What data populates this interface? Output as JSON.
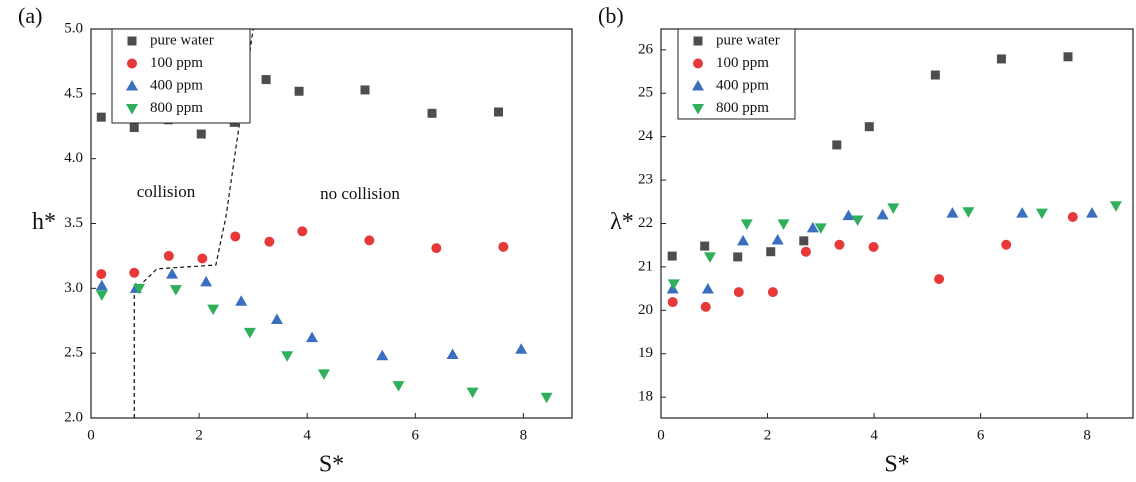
{
  "chart_data": [
    {
      "type": "scatter",
      "label": "(a)",
      "xlabel": "S*",
      "ylabel": "h*",
      "xlim": [
        0,
        8.9
      ],
      "ylim": [
        2,
        5
      ],
      "xticks": [
        0,
        2,
        4,
        6,
        8
      ],
      "yticks": [
        {
          "value": 2,
          "label": "2.0"
        },
        {
          "value": 2.5,
          "label": "2.5"
        },
        {
          "value": 3,
          "label": "3.0"
        },
        {
          "value": 3.5,
          "label": "3.5"
        },
        {
          "value": 4,
          "label": "4.0"
        },
        {
          "value": 4.5,
          "label": "4.5"
        },
        {
          "value": 5,
          "label": "5.0"
        }
      ],
      "annotations": [
        "collision",
        "no collision"
      ],
      "boundary": {
        "x": [
          0.8,
          0.8,
          1.22,
          2.31,
          2.5,
          3.0
        ],
        "y": [
          2.0,
          2.98,
          3.15,
          3.18,
          3.56,
          5.0
        ]
      },
      "series": [
        {
          "name": "pure water",
          "color": "#4d4d4d",
          "marker": "square",
          "x": [
            0.19,
            0.8,
            1.43,
            2.04,
            2.65,
            3.24,
            3.85,
            5.07,
            6.31,
            7.54
          ],
          "values": [
            4.32,
            4.24,
            4.3,
            4.19,
            4.28,
            4.61,
            4.52,
            4.53,
            4.35,
            4.36
          ]
        },
        {
          "name": "100 ppm",
          "color": "#e8393a",
          "marker": "circle",
          "x": [
            0.19,
            0.8,
            1.44,
            2.06,
            2.67,
            3.3,
            3.91,
            5.15,
            6.39,
            7.63
          ],
          "values": [
            3.11,
            3.12,
            3.25,
            3.23,
            3.4,
            3.36,
            3.44,
            3.37,
            3.31,
            3.32
          ]
        },
        {
          "name": "400 ppm",
          "color": "#3a6fc0",
          "marker": "triangle-up",
          "x": [
            0.2,
            0.83,
            1.5,
            2.13,
            2.78,
            3.44,
            4.09,
            5.39,
            6.69,
            7.96
          ],
          "values": [
            3.02,
            3.0,
            3.11,
            3.05,
            2.9,
            2.76,
            2.62,
            2.48,
            2.49,
            2.53
          ]
        },
        {
          "name": "800 ppm",
          "color": "#2eb05a",
          "marker": "triangle-down",
          "x": [
            0.2,
            0.89,
            1.57,
            2.26,
            2.94,
            3.63,
            4.31,
            5.69,
            7.06,
            8.43
          ],
          "values": [
            2.95,
            3.0,
            2.99,
            2.84,
            2.66,
            2.48,
            2.34,
            2.25,
            2.2,
            2.16
          ]
        }
      ]
    },
    {
      "type": "scatter",
      "label": "(b)",
      "xlabel": "S*",
      "ylabel": "λ*",
      "xlim": [
        0,
        8.86
      ],
      "ylim": [
        17.52,
        26.48
      ],
      "xticks": [
        0,
        2,
        4,
        6,
        8
      ],
      "yticks": [
        18,
        19,
        20,
        21,
        22,
        23,
        24,
        25,
        26
      ],
      "series": [
        {
          "name": "pure water",
          "color": "#4d4d4d",
          "marker": "square",
          "x": [
            0.21,
            0.82,
            1.44,
            2.06,
            2.68,
            3.3,
            3.91,
            5.15,
            6.39,
            7.64
          ],
          "values": [
            21.25,
            21.48,
            21.23,
            21.35,
            21.6,
            23.81,
            24.23,
            25.42,
            25.79,
            25.84
          ]
        },
        {
          "name": "100 ppm",
          "color": "#e8393a",
          "marker": "circle",
          "x": [
            0.22,
            0.84,
            1.46,
            2.1,
            2.72,
            3.35,
            3.99,
            5.22,
            6.48,
            7.73
          ],
          "values": [
            20.19,
            20.08,
            20.42,
            20.42,
            21.35,
            21.51,
            21.46,
            20.72,
            21.51,
            22.15
          ]
        },
        {
          "name": "400 ppm",
          "color": "#3a6fc0",
          "marker": "triangle-up",
          "x": [
            0.22,
            0.88,
            1.54,
            2.19,
            2.85,
            3.52,
            4.16,
            5.47,
            6.78,
            8.09
          ],
          "values": [
            20.49,
            20.49,
            21.6,
            21.62,
            21.9,
            22.18,
            22.2,
            22.24,
            22.24,
            22.24
          ]
        },
        {
          "name": "800 ppm",
          "color": "#2eb05a",
          "marker": "triangle-down",
          "x": [
            0.24,
            0.92,
            1.61,
            2.3,
            3.0,
            3.69,
            4.36,
            5.77,
            7.15,
            8.54
          ],
          "values": [
            20.61,
            21.23,
            21.99,
            21.99,
            21.9,
            22.08,
            22.36,
            22.27,
            22.24,
            22.41
          ]
        }
      ]
    }
  ]
}
